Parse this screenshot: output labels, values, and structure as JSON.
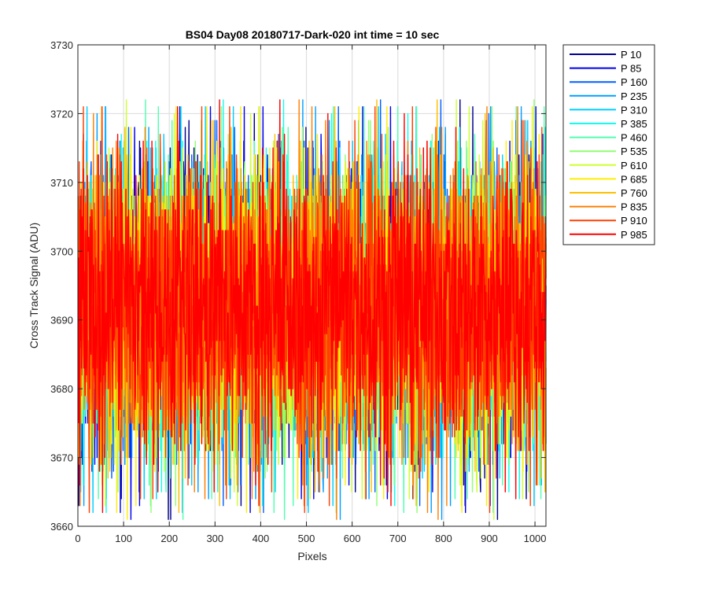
{
  "chart_data": {
    "type": "line",
    "title": "BS04 Day08 20180717-Dark-020 int time = 10 sec",
    "xlabel": "Pixels",
    "ylabel": "Cross Track Signal (ADU)",
    "xlim": [
      0,
      1024
    ],
    "ylim": [
      3660,
      3730
    ],
    "xticks": [
      0,
      100,
      200,
      300,
      400,
      500,
      600,
      700,
      800,
      900,
      1000
    ],
    "yticks": [
      3660,
      3670,
      3680,
      3690,
      3700,
      3710,
      3720,
      3730
    ],
    "grid": true,
    "legend_position": "outside-top-right",
    "points_per_series": 1024,
    "noise_summary": {
      "mean": 3692,
      "typical_min": 3676,
      "typical_max": 3708,
      "extreme_min": 3661,
      "extreme_max": 3723
    },
    "series": [
      {
        "name": "P 10",
        "color": "#00008f"
      },
      {
        "name": "P 85",
        "color": "#0000ef"
      },
      {
        "name": "P 160",
        "color": "#005fff"
      },
      {
        "name": "P 235",
        "color": "#00a0ff"
      },
      {
        "name": "P 310",
        "color": "#00cfff"
      },
      {
        "name": "P 385",
        "color": "#10ffef"
      },
      {
        "name": "P 460",
        "color": "#50ffaf"
      },
      {
        "name": "P 535",
        "color": "#8fff70"
      },
      {
        "name": "P 610",
        "color": "#cfff30"
      },
      {
        "name": "P 685",
        "color": "#ffef00"
      },
      {
        "name": "P 760",
        "color": "#ffbf00"
      },
      {
        "name": "P 835",
        "color": "#ff7f00"
      },
      {
        "name": "P 910",
        "color": "#ff3f00"
      },
      {
        "name": "P 985",
        "color": "#ff0000"
      }
    ]
  }
}
